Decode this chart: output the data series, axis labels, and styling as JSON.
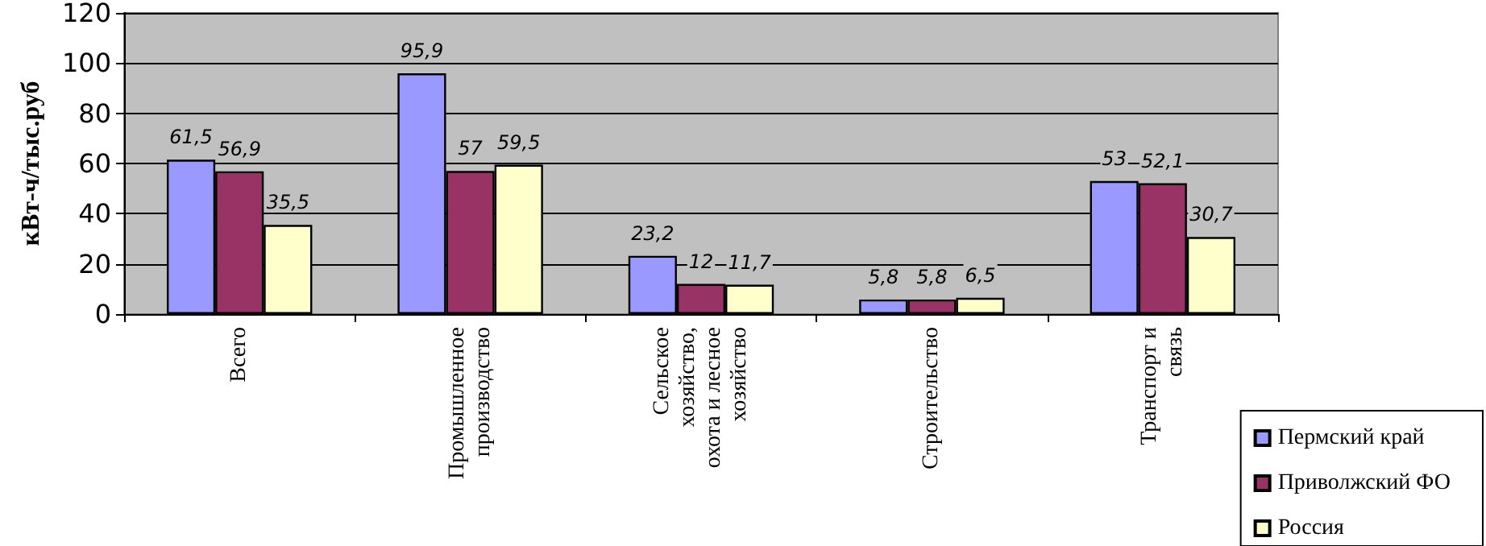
{
  "chart_data": {
    "type": "bar",
    "ylabel": "кВт-ч/тыс.руб",
    "categories": [
      "Всего",
      "Промышленное производство",
      "Сельское хозяйство, охота и лесное хозяйство",
      "Строительство",
      "Транспорт и связь"
    ],
    "series": [
      {
        "name": "Пермский край",
        "color": "#9999ff",
        "values": [
          61.5,
          95.9,
          23.2,
          5.8,
          53
        ],
        "value_labels": [
          "61,5",
          "95,9",
          "23,2",
          "5,8",
          "53"
        ]
      },
      {
        "name": "Приволжский ФО",
        "color": "#993366",
        "values": [
          56.9,
          57,
          12,
          5.8,
          52.1
        ],
        "value_labels": [
          "56,9",
          "57",
          "12",
          "5,8",
          "52,1"
        ]
      },
      {
        "name": "Россия",
        "color": "#ffffcc",
        "values": [
          35.5,
          59.5,
          11.7,
          6.5,
          30.7
        ],
        "value_labels": [
          "35,5",
          "59,5",
          "11,7",
          "6,5",
          "30,7"
        ]
      }
    ],
    "ylim": [
      0,
      120
    ],
    "yticks": [
      0,
      20,
      40,
      60,
      80,
      100,
      120
    ],
    "grid": "y",
    "legend": "bottom right"
  }
}
